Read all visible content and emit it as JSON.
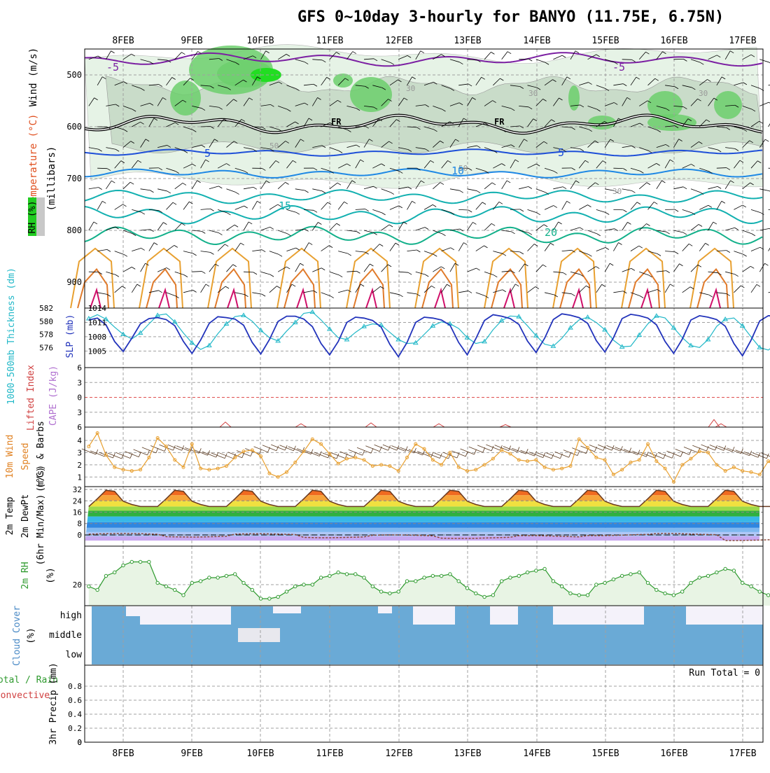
{
  "title": "GFS 0~10day 3-hourly for BANYO (11.75E, 6.75N)",
  "dates": [
    "8FEB",
    "9FEB",
    "10FEB",
    "11FEB",
    "12FEB",
    "13FEB",
    "14FEB",
    "15FEB",
    "16FEB",
    "17FEB"
  ],
  "colors": {
    "grid": "#a0a0a0",
    "wind": "#000000",
    "temp_low": "#7b1fa2",
    "temp_5": "#1e4fd8",
    "temp_10": "#1e88e5",
    "temp_15": "#12b0b0",
    "temp_20": "#12b08a",
    "temp_hot": "#e8a030",
    "slp": "#2233bb",
    "thick": "#22b8c8",
    "wind10": "#e8a030",
    "cloud": "#6aaad6",
    "rh2m": "#2e9a2e"
  },
  "panel_labels": {
    "wind": "Wind (m/s)",
    "temperature": "Temperature (°C)",
    "rh": "RH (%)",
    "millibars": "(millibars)",
    "slp": "SLP (mb)",
    "thickness": "1000-500mb Thickness (dm)",
    "cape": "CAPE (J/kg)",
    "lifted_index": "Lifted Index",
    "wind10": "10m Wind",
    "speed": "Speed",
    "barbs": "(m/s) & Barbs",
    "temp2m": "2m Temp",
    "dewpt": "2m DewPt",
    "minmax": "(6hr Min/Max) (°C)",
    "rh2m": "2m RH",
    "rh2m_unit": "(%)",
    "cloud": "Cloud Cover",
    "cloud_unit": "(%)",
    "precip_total": "Total / Rain",
    "precip_conv": "Convective",
    "precip": "3hr Precip (mm)",
    "run_total": "Run Total = 0"
  },
  "chart_data": [
    {
      "type": "heatmap",
      "name_hint": "upper-air contours",
      "y_ticks": [
        500,
        600,
        700,
        800,
        900
      ],
      "ylim": [
        450,
        950
      ],
      "rh_labels": [
        "30",
        "50",
        "50",
        "30",
        "30",
        "30"
      ],
      "temp_labels": [
        "-5",
        "-5",
        "5",
        "5",
        "10",
        "15",
        "20"
      ],
      "fr_labels": [
        "FR",
        "FR"
      ]
    },
    {
      "type": "line",
      "slp_ticks": [
        1005,
        1008,
        1011,
        1014
      ],
      "thickness_ticks": [
        576,
        578,
        580,
        582
      ],
      "slp": [
        1011.5,
        1011.9,
        1010.5,
        1007.0,
        1004.9,
        1007.7,
        1010.7,
        1011.8,
        1012.0,
        1011.6,
        1010.3,
        1007.0,
        1004.5,
        1007.3,
        1010.8,
        1012.2,
        1012.0,
        1011.7,
        1010.4,
        1006.8,
        1004.4,
        1007.4,
        1011.2,
        1012.3,
        1012.3,
        1011.7,
        1010.1,
        1006.6,
        1004.2,
        1007.0,
        1011.0,
        1012.1,
        1011.9,
        1011.4,
        1010.0,
        1006.4,
        1003.8,
        1006.8,
        1011.0,
        1012.1,
        1011.9,
        1011.5,
        1010.4,
        1006.8,
        1004.2,
        1007.6,
        1011.4,
        1012.6,
        1012.3,
        1011.8,
        1010.6,
        1007.1,
        1004.7,
        1007.7,
        1011.6,
        1012.8,
        1012.5,
        1012.0,
        1010.8,
        1007.2,
        1004.8,
        1007.8,
        1011.8,
        1012.7,
        1012.4,
        1011.9,
        1010.5,
        1007.0,
        1004.5,
        1007.5,
        1011.5,
        1012.4,
        1012.1,
        1011.6,
        1010.2,
        1006.6,
        1004.0,
        1007.3,
        1011.3,
        1012.4,
        1012.3,
        1012.3
      ],
      "thickness": [
        580.4,
        581.0,
        580.3,
        579.1,
        578.0,
        577.3,
        578.2,
        579.6,
        580.9,
        581.1,
        579.9,
        578.2,
        576.7,
        575.7,
        576.3,
        578.1,
        579.6,
        580.7,
        580.9,
        580.0,
        578.6,
        577.5,
        577.0,
        578.5,
        579.8,
        581.2,
        581.4,
        580.2,
        578.8,
        577.5,
        577.2,
        578.3,
        579.2,
        579.6,
        579.4,
        578.3,
        577.2,
        576.6,
        576.7,
        578.0,
        579.3,
        579.9,
        579.6,
        578.9,
        577.5,
        576.6,
        576.9,
        578.7,
        580.1,
        580.8,
        580.7,
        579.3,
        577.8,
        576.5,
        576.2,
        577.4,
        579.0,
        580.2,
        580.6,
        579.8,
        578.7,
        577.1,
        576.1,
        576.2,
        577.9,
        579.6,
        580.8,
        580.5,
        579.0,
        577.5,
        576.3,
        576.0,
        577.2,
        579.2,
        580.3,
        580.5,
        579.3,
        577.6,
        576.0,
        575.6,
        576.6,
        576.9
      ],
      "title": "",
      "xlabel": ""
    },
    {
      "type": "line",
      "cape_ticks": [
        -6,
        -3,
        0,
        3,
        6
      ],
      "cape_tick_labels": [
        "6",
        "3",
        "0",
        "3",
        "6"
      ],
      "li_spikes": [
        0.6,
        0.4,
        0.5,
        0.4,
        0.3,
        0.9,
        0.4
      ]
    },
    {
      "type": "line",
      "yticks": [
        1,
        2,
        3,
        4
      ],
      "speed": [
        3.5,
        4.6,
        2.8,
        1.8,
        1.6,
        1.5,
        1.6,
        2.6,
        4.2,
        3.5,
        2.4,
        1.8,
        3.7,
        1.7,
        1.6,
        1.7,
        1.9,
        2.6,
        3.1,
        3.2,
        2.7,
        1.3,
        1.0,
        1.4,
        2.2,
        3.1,
        4.1,
        3.7,
        2.9,
        2.1,
        2.5,
        2.6,
        2.4,
        1.9,
        2.0,
        1.9,
        1.5,
        2.6,
        3.7,
        3.3,
        2.4,
        2.0,
        3.0,
        1.8,
        1.5,
        1.6,
        2.0,
        2.5,
        3.2,
        2.9,
        2.4,
        2.3,
        2.4,
        1.8,
        1.6,
        1.7,
        1.9,
        4.1,
        3.4,
        2.6,
        2.4,
        1.2,
        1.6,
        2.2,
        2.4,
        3.7,
        2.3,
        1.7,
        0.6,
        2.0,
        2.5,
        3.1,
        3.0,
        2.0,
        1.5,
        1.8,
        1.5,
        1.4,
        1.2,
        2.3,
        1.7,
        1.5
      ],
      "title": "",
      "xlabel": ""
    },
    {
      "type": "area",
      "yticks": [
        0,
        8,
        16,
        24,
        32
      ],
      "day_max": 32,
      "night_min": 20,
      "dewpoint": [
        0.5,
        -1.0,
        0.3,
        -1.5,
        -0.5,
        -2.0,
        -1.0,
        0.0,
        0.5,
        -3.5
      ]
    },
    {
      "type": "line",
      "yticks": [
        20
      ],
      "rh": [
        19,
        17,
        25,
        27,
        31,
        33,
        33,
        33,
        21,
        19,
        17,
        14,
        21,
        22,
        24,
        24,
        25,
        26,
        21,
        17,
        12,
        12,
        13,
        16,
        19,
        20,
        20,
        24,
        25,
        27,
        26,
        26,
        24,
        19,
        16,
        15,
        16,
        22,
        22,
        24,
        25,
        25,
        26,
        22,
        18,
        15,
        13,
        14,
        22,
        24,
        25,
        27,
        28,
        29,
        22,
        19,
        15,
        14,
        14,
        20,
        21,
        23,
        25,
        26,
        27,
        21,
        17,
        15,
        14,
        16,
        21,
        24,
        25,
        27,
        29,
        28,
        21,
        19,
        16,
        14,
        15,
        21
      ],
      "title": "",
      "xlabel": ""
    },
    {
      "type": "bar",
      "rows": [
        "high",
        "middle",
        "low"
      ],
      "title": ""
    },
    {
      "type": "bar",
      "yticks": [
        0,
        0.2,
        0.4,
        0.6,
        0.8
      ],
      "precip": [],
      "title": ""
    }
  ]
}
